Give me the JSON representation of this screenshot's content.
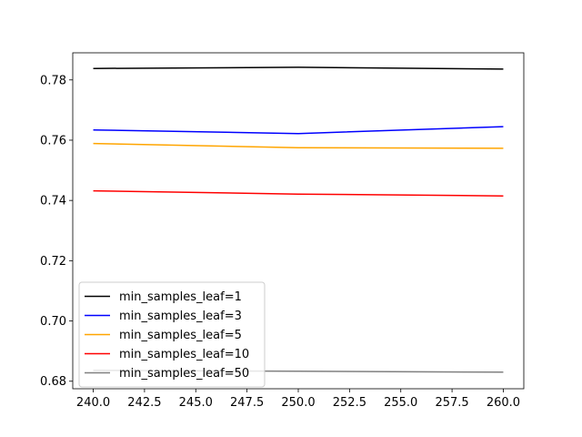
{
  "chart_data": {
    "type": "line",
    "title": "",
    "xlabel": "",
    "ylabel": "",
    "x": [
      240,
      250,
      260
    ],
    "xlim": [
      239,
      261
    ],
    "ylim": [
      0.6775,
      0.789
    ],
    "xticks": [
      240.0,
      242.5,
      245.0,
      247.5,
      250.0,
      252.5,
      255.0,
      257.5,
      260.0
    ],
    "xtick_labels": [
      "240.0",
      "242.5",
      "245.0",
      "247.5",
      "250.0",
      "252.5",
      "255.0",
      "257.5",
      "260.0"
    ],
    "yticks": [
      0.68,
      0.7,
      0.72,
      0.74,
      0.76,
      0.78
    ],
    "ytick_labels": [
      "0.68",
      "0.70",
      "0.72",
      "0.74",
      "0.76",
      "0.78"
    ],
    "grid": false,
    "legend_position": "lower-left",
    "series": [
      {
        "name": "min_samples_leaf=1",
        "color": "#000000",
        "values": [
          0.7838,
          0.7842,
          0.7836
        ]
      },
      {
        "name": "min_samples_leaf=3",
        "color": "#0000ff",
        "values": [
          0.7634,
          0.7622,
          0.7645
        ]
      },
      {
        "name": "min_samples_leaf=5",
        "color": "#ffa500",
        "values": [
          0.7589,
          0.7575,
          0.7573
        ]
      },
      {
        "name": "min_samples_leaf=10",
        "color": "#ff0000",
        "values": [
          0.7432,
          0.7421,
          0.7415
        ]
      },
      {
        "name": "min_samples_leaf=50",
        "color": "#808080",
        "values": [
          0.6836,
          0.6833,
          0.683
        ]
      }
    ]
  }
}
